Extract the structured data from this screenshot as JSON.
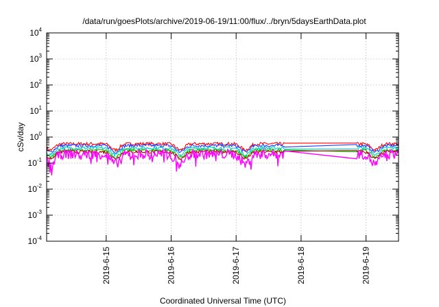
{
  "chart_data": {
    "type": "line",
    "title": "/data/run/goesPlots/archive/2019-06-19/11:00/flux/../bryn/5daysEarthData.plot",
    "xlabel": "Coordinated Universal Time (UTC)",
    "ylabel": "cSv/day",
    "yscale": "log",
    "ylim_exponent": [
      -4,
      4
    ],
    "y_ticks": [
      {
        "base": "10",
        "exp": "-4"
      },
      {
        "base": "10",
        "exp": "-3"
      },
      {
        "base": "10",
        "exp": "-2"
      },
      {
        "base": "10",
        "exp": "-1"
      },
      {
        "base": "10",
        "exp": "0"
      },
      {
        "base": "10",
        "exp": "1"
      },
      {
        "base": "10",
        "exp": "2"
      },
      {
        "base": "10",
        "exp": "3"
      },
      {
        "base": "10",
        "exp": "4"
      }
    ],
    "xlim_days": [
      "2019-06-14T02:00",
      "2019-06-19T12:00"
    ],
    "x_ticks": [
      "2019-6-15",
      "2019-6-16",
      "2019-6-17",
      "2019-6-18",
      "2019-6-19"
    ],
    "grid": true,
    "data_gap": [
      "2019-06-17T18:00",
      "2019-06-18T20:30"
    ],
    "series": [
      {
        "color": "#ff0000",
        "baseline": 0.55,
        "trough": 0.32
      },
      {
        "color": "#1e3cff",
        "baseline": 0.47,
        "trough": 0.27
      },
      {
        "color": "#00cccc",
        "baseline": 0.38,
        "trough": 0.21
      },
      {
        "color": "#00c800",
        "baseline": 0.31,
        "trough": 0.17
      },
      {
        "color": "#b40000",
        "baseline": 0.27,
        "trough": 0.15
      },
      {
        "color": "#ff00ff",
        "baseline": 0.22,
        "trough": 0.09
      }
    ]
  }
}
